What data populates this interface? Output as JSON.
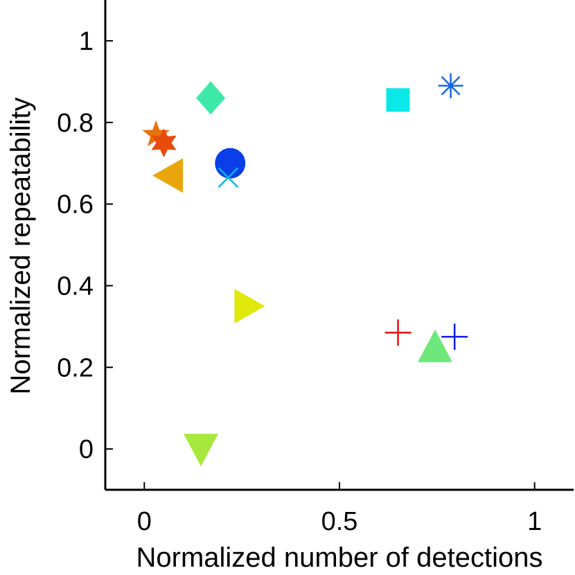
{
  "chart_data": {
    "type": "scatter",
    "title": "",
    "xlabel": "Normalized number of detections",
    "ylabel": "Normalized repeatability",
    "xlim": [
      -0.1,
      1.1
    ],
    "ylim": [
      -0.1,
      1.1
    ],
    "xticks": [
      {
        "value": 0,
        "label": "0"
      },
      {
        "value": 0.5,
        "label": "0.5"
      },
      {
        "value": 1,
        "label": "1"
      }
    ],
    "yticks": [
      {
        "value": 0,
        "label": "0"
      },
      {
        "value": 0.2,
        "label": "0.2"
      },
      {
        "value": 0.4,
        "label": "0.4"
      },
      {
        "value": 0.6,
        "label": "0.6"
      },
      {
        "value": 0.8,
        "label": "0.8"
      },
      {
        "value": 1,
        "label": "1"
      }
    ],
    "grid": false,
    "legend": "none",
    "points": [
      {
        "x": 0.03,
        "y": 0.77,
        "marker": "pentagram",
        "color": "#e8720c"
      },
      {
        "x": 0.05,
        "y": 0.75,
        "marker": "hexagram",
        "color": "#e84a0c"
      },
      {
        "x": 0.06,
        "y": 0.67,
        "marker": "triangle-left",
        "color": "#e8a60c"
      },
      {
        "x": 0.17,
        "y": 0.86,
        "marker": "diamond",
        "color": "#3ee8a8"
      },
      {
        "x": 0.22,
        "y": 0.7,
        "marker": "circle",
        "color": "#0a3ee8"
      },
      {
        "x": 0.215,
        "y": 0.665,
        "marker": "x",
        "color": "#0ab4e8"
      },
      {
        "x": 0.27,
        "y": 0.35,
        "marker": "triangle-right",
        "color": "#e0e80c"
      },
      {
        "x": 0.145,
        "y": 0.0,
        "marker": "triangle-down",
        "color": "#a6e83e"
      },
      {
        "x": 0.65,
        "y": 0.855,
        "marker": "square",
        "color": "#0ae8e8"
      },
      {
        "x": 0.785,
        "y": 0.89,
        "marker": "asterisk",
        "color": "#1466e8"
      },
      {
        "x": 0.65,
        "y": 0.285,
        "marker": "plus",
        "color": "#e80c0c"
      },
      {
        "x": 0.745,
        "y": 0.25,
        "marker": "triangle-up",
        "color": "#6ee87a"
      },
      {
        "x": 0.795,
        "y": 0.275,
        "marker": "plus",
        "color": "#0c1ae8"
      }
    ]
  }
}
